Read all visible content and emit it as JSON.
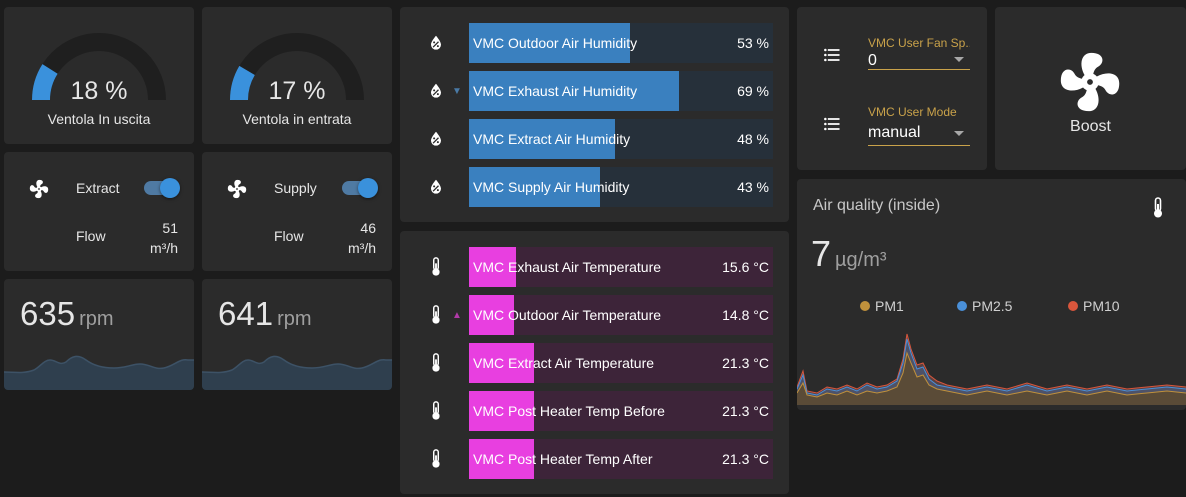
{
  "gauges": [
    {
      "value": "18 %",
      "percent": 18,
      "name": "Ventola In uscita"
    },
    {
      "value": "17 %",
      "percent": 17,
      "name": "Ventola in entrata"
    }
  ],
  "switches": [
    {
      "label": "Extract",
      "on": true,
      "flow_label": "Flow",
      "flow_value": "51",
      "flow_unit": "m³/h"
    },
    {
      "label": "Supply",
      "on": true,
      "flow_label": "Flow",
      "flow_value": "46",
      "flow_unit": "m³/h"
    }
  ],
  "rpm": [
    {
      "value": "635",
      "unit": "rpm"
    },
    {
      "value": "641",
      "unit": "rpm"
    }
  ],
  "humidity": [
    {
      "name": "VMC Outdoor Air Humidity",
      "value": "53 %",
      "fill": 0.53,
      "trend": ""
    },
    {
      "name": "VMC Exhaust Air Humidity",
      "value": "69 %",
      "fill": 0.69,
      "trend": "▼"
    },
    {
      "name": "VMC Extract Air Humidity",
      "value": "48 %",
      "fill": 0.48,
      "trend": ""
    },
    {
      "name": "VMC Supply Air Humidity",
      "value": "43 %",
      "fill": 0.43,
      "trend": ""
    }
  ],
  "temperature": [
    {
      "name": "VMC Exhaust Air Temperature",
      "value": "15.6 °C",
      "fill": 0.156,
      "trend": ""
    },
    {
      "name": "VMC Outdoor Air Temperature",
      "value": "14.8 °C",
      "fill": 0.148,
      "trend": "▲"
    },
    {
      "name": "VMC Extract Air Temperature",
      "value": "21.3 °C",
      "fill": 0.213,
      "trend": ""
    },
    {
      "name": "VMC Post Heater Temp Before",
      "value": "21.3 °C",
      "fill": 0.213,
      "trend": ""
    },
    {
      "name": "VMC Post Heater Temp After",
      "value": "21.3 °C",
      "fill": 0.213,
      "trend": ""
    }
  ],
  "selects": [
    {
      "label": "VMC User Fan Sp...",
      "value": "0"
    },
    {
      "label": "VMC User Mode",
      "value": "manual"
    }
  ],
  "boost": {
    "label": "Boost"
  },
  "air_quality": {
    "title": "Air quality (inside)",
    "value": "7",
    "unit": "µg/m³",
    "legend": [
      {
        "name": "PM1",
        "color": "#c0913c"
      },
      {
        "name": "PM2.5",
        "color": "#4a90d9"
      },
      {
        "name": "PM10",
        "color": "#d9563c"
      }
    ]
  },
  "colors": {
    "humidity_fill": "#3a80bf",
    "humidity_bg": "#26303a",
    "temp_fill": "#e83fe0",
    "temp_bg": "#3d2439",
    "accent": "#3a91dc"
  }
}
